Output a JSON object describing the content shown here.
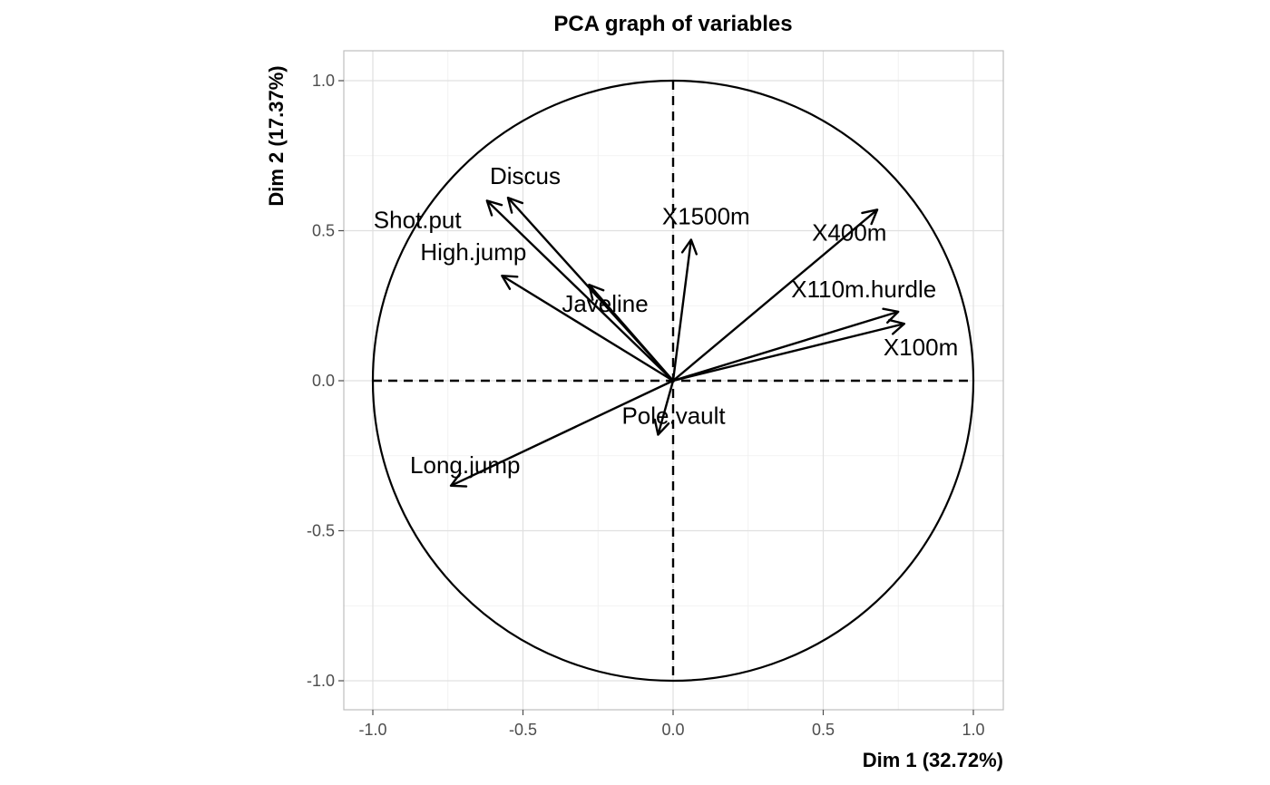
{
  "chart_data": {
    "type": "scatter",
    "subtype": "pca-correlation-circle",
    "title": "PCA graph of variables",
    "xlabel": "Dim 1 (32.72%)",
    "ylabel": "Dim 2 (17.37%)",
    "xlim": [
      -1.1,
      1.1
    ],
    "ylim": [
      -1.1,
      1.1
    ],
    "xticks": [
      -1.0,
      -0.5,
      0.0,
      0.5,
      1.0
    ],
    "yticks": [
      -1.0,
      -0.5,
      0.0,
      0.5,
      1.0
    ],
    "xtick_labels": [
      "-1.0",
      "-0.5",
      "0.0",
      "0.5",
      "1.0"
    ],
    "ytick_labels": [
      "-1.0",
      "-0.5",
      "0.0",
      "0.5",
      "1.0"
    ],
    "grid": true,
    "unit_circle": true,
    "variables": [
      {
        "name": "X100m",
        "x": 0.77,
        "y": 0.19
      },
      {
        "name": "Long.jump",
        "x": -0.74,
        "y": -0.35
      },
      {
        "name": "Shot.put",
        "x": -0.62,
        "y": 0.6
      },
      {
        "name": "High.jump",
        "x": -0.57,
        "y": 0.35
      },
      {
        "name": "X400m",
        "x": 0.68,
        "y": 0.57
      },
      {
        "name": "X110m.hurdle",
        "x": 0.75,
        "y": 0.23
      },
      {
        "name": "Discus",
        "x": -0.55,
        "y": 0.61
      },
      {
        "name": "Pole.vault",
        "x": -0.05,
        "y": -0.18
      },
      {
        "name": "Javeline",
        "x": -0.28,
        "y": 0.32
      },
      {
        "name": "X1500m",
        "x": 0.06,
        "y": 0.47
      }
    ]
  }
}
